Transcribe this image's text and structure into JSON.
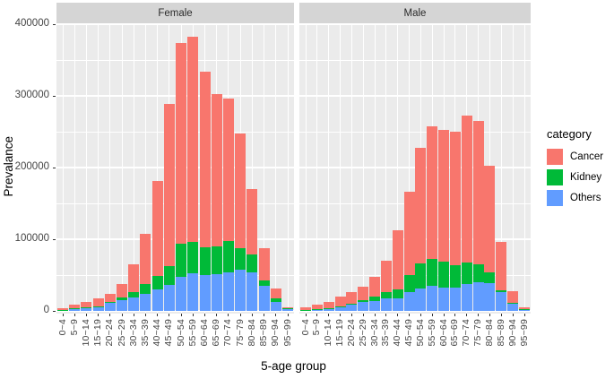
{
  "figure": {
    "ylabel": "Prevalance",
    "xlabel": "5-age group",
    "y_ticks": [
      {
        "label": "0",
        "value": 0
      },
      {
        "label": "100000",
        "value": 100000
      },
      {
        "label": "200000",
        "value": 200000
      },
      {
        "label": "300000",
        "value": 300000
      },
      {
        "label": "400000",
        "value": 400000
      }
    ],
    "colors": {
      "panel_background": "#EBEBEB",
      "strip_background": "#D5D5D5",
      "gridline": "#FFFFFF"
    }
  },
  "legend": {
    "title": "category",
    "items": [
      {
        "label": "Cancer",
        "color": "#F8766D"
      },
      {
        "label": "Kidney",
        "color": "#00BA38"
      },
      {
        "label": "Others",
        "color": "#619CFF"
      }
    ]
  },
  "chart_data": {
    "type": "bar",
    "stacked": true,
    "grid": true,
    "legend_position": "right",
    "ylim": [
      0,
      400000
    ],
    "y_major_step": 100000,
    "y_minor_step": 50000,
    "ylabel": "Prevalance",
    "xlabel": "5-age group",
    "facets": [
      {
        "name": "Female",
        "categories": [
          "0~4",
          "5~9",
          "10~14",
          "15~19",
          "20~24",
          "25~29",
          "30~34",
          "35~39",
          "40~44",
          "45~49",
          "50~54",
          "55~59",
          "60~64",
          "65~69",
          "70~74",
          "75~79",
          "80~84",
          "85~89",
          "90~94",
          "95~99"
        ],
        "series": [
          {
            "name": "Cancer",
            "color": "#F8766D",
            "values": [
              2200,
              5400,
              8200,
              10800,
              11000,
              19000,
              39000,
              70000,
              132000,
              227000,
              280000,
              287000,
              245000,
              212000,
              199000,
              160000,
              91000,
              45000,
              13000,
              2300
            ]
          },
          {
            "name": "Kidney",
            "color": "#00BA38",
            "values": [
              300,
              600,
              800,
              1200,
              1500,
              4000,
              7000,
              13000,
              19000,
              26000,
              46000,
              44000,
              39000,
              39000,
              43000,
              31000,
              25000,
              8000,
              5000,
              700
            ]
          },
          {
            "name": "Others",
            "color": "#619CFF",
            "values": [
              1500,
              3000,
              4000,
              5000,
              11000,
              15000,
              19000,
              24000,
              30000,
              36000,
              48000,
              52000,
              50000,
              51000,
              54000,
              57000,
              54000,
              35000,
              13000,
              2500
            ]
          }
        ]
      },
      {
        "name": "Male",
        "categories": [
          "0~4",
          "5~9",
          "10~14",
          "15~19",
          "20~24",
          "25~29",
          "30~34",
          "35~39",
          "40~44",
          "45~49",
          "50~54",
          "55~59",
          "60~64",
          "65~69",
          "70~74",
          "75~79",
          "80~84",
          "85~89",
          "90~94",
          "95~99"
        ],
        "series": [
          {
            "name": "Cancer",
            "color": "#F8766D",
            "values": [
              3500,
              6000,
              9000,
              13100,
              16200,
              18500,
              27000,
              44000,
              83000,
              116000,
              161000,
              184000,
              183000,
              186000,
              206000,
              200000,
              148000,
              67000,
              15500,
              2500
            ]
          },
          {
            "name": "Kidney",
            "color": "#00BA38",
            "values": [
              300,
              500,
              700,
              900,
              1300,
              3000,
              6000,
              8500,
              12000,
              24000,
              35000,
              38000,
              36000,
              32000,
              30000,
              25000,
              15000,
              3000,
              1500,
              300
            ]
          },
          {
            "name": "Others",
            "color": "#619CFF",
            "values": [
              1200,
              2500,
              3300,
              5500,
              8500,
              12000,
              14000,
              17500,
              18000,
              26000,
              31000,
              35000,
              33000,
              32000,
              37000,
              40000,
              39000,
              26000,
              10000,
              2500
            ]
          }
        ]
      }
    ]
  }
}
